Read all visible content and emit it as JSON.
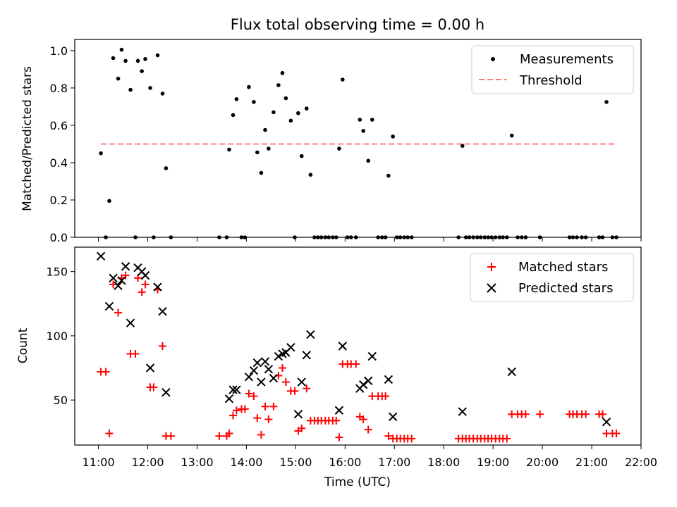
{
  "chart_data": [
    {
      "type": "scatter",
      "title": "Flux total observing time = 0.00 h",
      "ylabel": "Matched/Predicted stars",
      "xlim": [
        10.52,
        22.0
      ],
      "ylim": [
        0.0,
        1.06
      ],
      "yticks": [
        0.0,
        0.2,
        0.4,
        0.6,
        0.8,
        1.0
      ],
      "ytick_labels": [
        "0.0",
        "0.2",
        "0.4",
        "0.6",
        "0.8",
        "1.0"
      ],
      "legend_position": "top-right",
      "series": [
        {
          "name": "Measurements",
          "marker": "dot",
          "color": "#000000",
          "points": [
            [
              11.05,
              0.45
            ],
            [
              11.15,
              0.0
            ],
            [
              11.22,
              0.195
            ],
            [
              11.3,
              0.96
            ],
            [
              11.4,
              0.85
            ],
            [
              11.47,
              1.005
            ],
            [
              11.55,
              0.945
            ],
            [
              11.65,
              0.79
            ],
            [
              11.75,
              0.0
            ],
            [
              11.8,
              0.945
            ],
            [
              11.88,
              0.89
            ],
            [
              11.95,
              0.955
            ],
            [
              12.05,
              0.8
            ],
            [
              12.12,
              0.0
            ],
            [
              12.2,
              0.975
            ],
            [
              12.3,
              0.77
            ],
            [
              12.37,
              0.37
            ],
            [
              12.47,
              0.0
            ],
            [
              13.45,
              0.0
            ],
            [
              13.6,
              0.0
            ],
            [
              13.65,
              0.47
            ],
            [
              13.73,
              0.655
            ],
            [
              13.8,
              0.74
            ],
            [
              13.9,
              0.0
            ],
            [
              13.97,
              0.0
            ],
            [
              14.05,
              0.805
            ],
            [
              14.15,
              0.725
            ],
            [
              14.22,
              0.455
            ],
            [
              14.3,
              0.345
            ],
            [
              14.38,
              0.575
            ],
            [
              14.45,
              0.475
            ],
            [
              14.55,
              0.67
            ],
            [
              14.65,
              0.815
            ],
            [
              14.73,
              0.88
            ],
            [
              14.8,
              0.745
            ],
            [
              14.9,
              0.625
            ],
            [
              14.98,
              0.0
            ],
            [
              15.05,
              0.665
            ],
            [
              15.12,
              0.435
            ],
            [
              15.22,
              0.69
            ],
            [
              15.3,
              0.335
            ],
            [
              15.38,
              0.0
            ],
            [
              15.45,
              0.0
            ],
            [
              15.52,
              0.0
            ],
            [
              15.6,
              0.0
            ],
            [
              15.67,
              0.0
            ],
            [
              15.75,
              0.0
            ],
            [
              15.82,
              0.0
            ],
            [
              15.88,
              0.475
            ],
            [
              15.95,
              0.845
            ],
            [
              16.05,
              0.0
            ],
            [
              16.12,
              0.0
            ],
            [
              16.22,
              0.0
            ],
            [
              16.3,
              0.63
            ],
            [
              16.37,
              0.57
            ],
            [
              16.47,
              0.41
            ],
            [
              16.55,
              0.63
            ],
            [
              16.67,
              0.0
            ],
            [
              16.75,
              0.0
            ],
            [
              16.82,
              0.0
            ],
            [
              16.88,
              0.33
            ],
            [
              16.97,
              0.54
            ],
            [
              17.05,
              0.0
            ],
            [
              17.12,
              0.0
            ],
            [
              17.2,
              0.0
            ],
            [
              17.27,
              0.0
            ],
            [
              17.35,
              0.0
            ],
            [
              18.3,
              0.0
            ],
            [
              18.38,
              0.49
            ],
            [
              18.45,
              0.0
            ],
            [
              18.52,
              0.0
            ],
            [
              18.6,
              0.0
            ],
            [
              18.68,
              0.0
            ],
            [
              18.75,
              0.0
            ],
            [
              18.83,
              0.0
            ],
            [
              18.9,
              0.0
            ],
            [
              18.97,
              0.0
            ],
            [
              19.05,
              0.0
            ],
            [
              19.13,
              0.0
            ],
            [
              19.2,
              0.0
            ],
            [
              19.28,
              0.0
            ],
            [
              19.38,
              0.545
            ],
            [
              19.5,
              0.0
            ],
            [
              19.58,
              0.0
            ],
            [
              19.66,
              0.0
            ],
            [
              19.95,
              0.0
            ],
            [
              20.55,
              0.0
            ],
            [
              20.62,
              0.0
            ],
            [
              20.7,
              0.0
            ],
            [
              20.8,
              0.0
            ],
            [
              20.88,
              0.0
            ],
            [
              21.15,
              0.0
            ],
            [
              21.22,
              0.0
            ],
            [
              21.3,
              0.725
            ],
            [
              21.42,
              0.0
            ],
            [
              21.5,
              0.0
            ]
          ]
        },
        {
          "name": "Threshold",
          "marker": "dashed-line",
          "color": "#ff7f7f",
          "points": [
            [
              11.05,
              0.5
            ],
            [
              21.5,
              0.5
            ]
          ]
        }
      ]
    },
    {
      "type": "scatter",
      "xlabel": "Time (UTC)",
      "ylabel": "Count",
      "xlim": [
        10.52,
        22.0
      ],
      "ylim": [
        15.0,
        169.0
      ],
      "xticks": [
        11,
        12,
        13,
        14,
        15,
        16,
        17,
        18,
        19,
        20,
        21,
        22
      ],
      "xtick_labels": [
        "11:00",
        "12:00",
        "13:00",
        "14:00",
        "15:00",
        "16:00",
        "17:00",
        "18:00",
        "19:00",
        "20:00",
        "21:00",
        "22:00"
      ],
      "yticks": [
        50,
        100,
        150
      ],
      "ytick_labels": [
        "50",
        "100",
        "150"
      ],
      "legend_position": "top-right",
      "series": [
        {
          "name": "Matched stars",
          "marker": "plus",
          "color": "#ff0000",
          "points": [
            [
              11.05,
              72
            ],
            [
              11.15,
              72
            ],
            [
              11.22,
              24
            ],
            [
              11.3,
              140
            ],
            [
              11.4,
              118
            ],
            [
              11.47,
              145
            ],
            [
              11.55,
              147
            ],
            [
              11.65,
              86
            ],
            [
              11.75,
              86
            ],
            [
              11.8,
              145
            ],
            [
              11.88,
              134
            ],
            [
              11.95,
              140
            ],
            [
              12.05,
              60
            ],
            [
              12.12,
              60
            ],
            [
              12.2,
              136
            ],
            [
              12.3,
              92
            ],
            [
              12.37,
              22
            ],
            [
              12.47,
              22
            ],
            [
              13.45,
              22
            ],
            [
              13.6,
              22
            ],
            [
              13.65,
              24
            ],
            [
              13.73,
              38
            ],
            [
              13.8,
              42
            ],
            [
              13.9,
              43
            ],
            [
              13.97,
              43
            ],
            [
              14.05,
              55
            ],
            [
              14.15,
              53
            ],
            [
              14.22,
              36
            ],
            [
              14.3,
              23
            ],
            [
              14.38,
              45
            ],
            [
              14.45,
              35
            ],
            [
              14.55,
              45
            ],
            [
              14.65,
              69
            ],
            [
              14.73,
              75
            ],
            [
              14.8,
              64
            ],
            [
              14.9,
              57
            ],
            [
              14.98,
              57
            ],
            [
              15.05,
              26
            ],
            [
              15.12,
              28
            ],
            [
              15.22,
              59
            ],
            [
              15.3,
              34
            ],
            [
              15.38,
              34
            ],
            [
              15.45,
              34
            ],
            [
              15.52,
              34
            ],
            [
              15.6,
              34
            ],
            [
              15.67,
              34
            ],
            [
              15.75,
              34
            ],
            [
              15.82,
              34
            ],
            [
              15.88,
              21
            ],
            [
              15.95,
              78
            ],
            [
              16.05,
              78
            ],
            [
              16.12,
              78
            ],
            [
              16.22,
              78
            ],
            [
              16.3,
              37
            ],
            [
              16.37,
              35
            ],
            [
              16.47,
              27
            ],
            [
              16.55,
              53
            ],
            [
              16.67,
              53
            ],
            [
              16.75,
              53
            ],
            [
              16.82,
              53
            ],
            [
              16.88,
              22
            ],
            [
              16.97,
              20
            ],
            [
              17.05,
              20
            ],
            [
              17.12,
              20
            ],
            [
              17.2,
              20
            ],
            [
              17.27,
              20
            ],
            [
              17.35,
              20
            ],
            [
              18.3,
              20
            ],
            [
              18.38,
              20
            ],
            [
              18.45,
              20
            ],
            [
              18.52,
              20
            ],
            [
              18.6,
              20
            ],
            [
              18.68,
              20
            ],
            [
              18.75,
              20
            ],
            [
              18.83,
              20
            ],
            [
              18.9,
              20
            ],
            [
              18.97,
              20
            ],
            [
              19.05,
              20
            ],
            [
              19.13,
              20
            ],
            [
              19.2,
              20
            ],
            [
              19.28,
              20
            ],
            [
              19.38,
              39
            ],
            [
              19.5,
              39
            ],
            [
              19.58,
              39
            ],
            [
              19.66,
              39
            ],
            [
              19.95,
              39
            ],
            [
              20.55,
              39
            ],
            [
              20.62,
              39
            ],
            [
              20.7,
              39
            ],
            [
              20.8,
              39
            ],
            [
              20.88,
              39
            ],
            [
              21.15,
              39
            ],
            [
              21.22,
              39
            ],
            [
              21.3,
              24
            ],
            [
              21.42,
              24
            ],
            [
              21.5,
              24
            ]
          ]
        },
        {
          "name": "Predicted stars",
          "marker": "x",
          "color": "#000000",
          "points": [
            [
              11.05,
              162
            ],
            [
              11.22,
              123
            ],
            [
              11.3,
              145
            ],
            [
              11.4,
              139
            ],
            [
              11.47,
              143
            ],
            [
              11.55,
              154
            ],
            [
              11.65,
              110
            ],
            [
              11.8,
              153
            ],
            [
              11.88,
              150
            ],
            [
              11.95,
              147
            ],
            [
              12.05,
              75
            ],
            [
              12.2,
              138
            ],
            [
              12.3,
              119
            ],
            [
              12.37,
              56
            ],
            [
              13.65,
              51
            ],
            [
              13.73,
              58
            ],
            [
              13.8,
              58
            ],
            [
              14.05,
              68
            ],
            [
              14.15,
              73
            ],
            [
              14.22,
              79
            ],
            [
              14.3,
              64
            ],
            [
              14.38,
              80
            ],
            [
              14.45,
              74
            ],
            [
              14.55,
              67
            ],
            [
              14.65,
              84
            ],
            [
              14.73,
              86
            ],
            [
              14.8,
              87
            ],
            [
              14.9,
              91
            ],
            [
              15.05,
              39
            ],
            [
              15.12,
              64
            ],
            [
              15.22,
              85
            ],
            [
              15.3,
              101
            ],
            [
              15.88,
              42
            ],
            [
              15.95,
              92
            ],
            [
              16.3,
              59
            ],
            [
              16.37,
              62
            ],
            [
              16.47,
              65
            ],
            [
              16.55,
              84
            ],
            [
              16.88,
              66
            ],
            [
              16.97,
              37
            ],
            [
              18.38,
              41
            ],
            [
              19.38,
              72
            ],
            [
              21.3,
              33
            ]
          ]
        }
      ]
    }
  ]
}
